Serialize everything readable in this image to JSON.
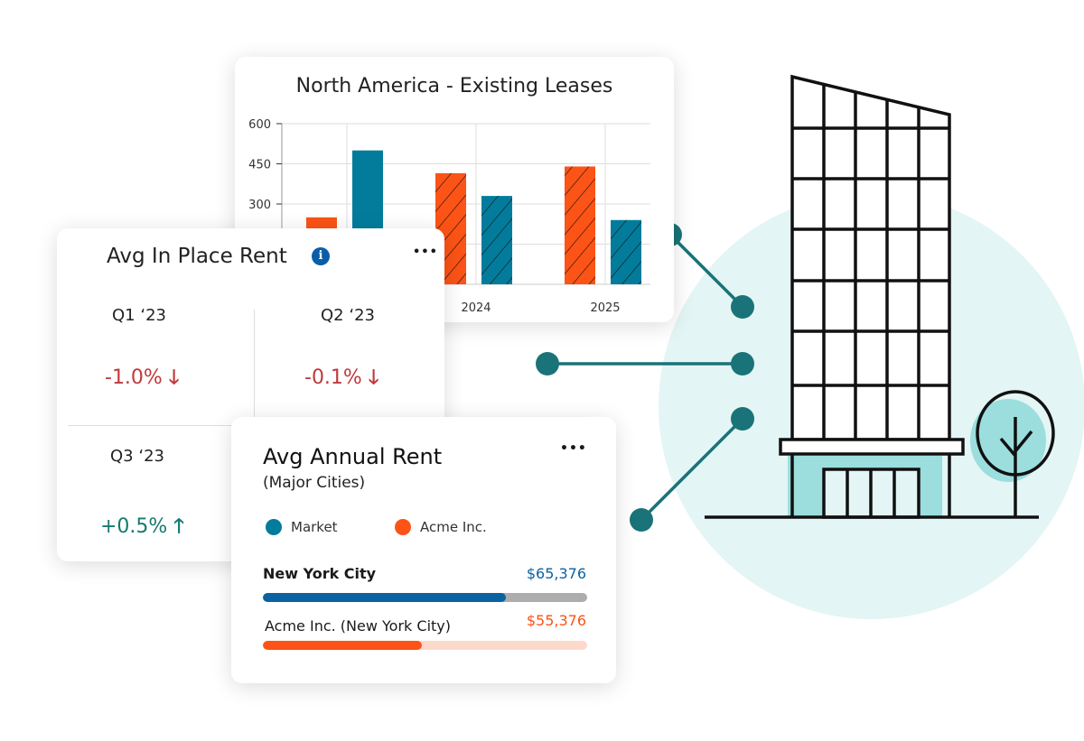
{
  "colors": {
    "market": "#037c9c",
    "acme": "#fc5316",
    "teal_dot": "#1a7378",
    "circle_bg": "#e3f5f4",
    "down": "#c0393b",
    "up": "#157a6e",
    "nyc_bar": "#0a63a0"
  },
  "chart_data": {
    "type": "bar",
    "title": "North America - Existing Leases",
    "categories": [
      "",
      "2024",
      "2025"
    ],
    "series": [
      {
        "values": [
          250,
          415,
          440
        ],
        "color": "#fc5316"
      },
      {
        "values": [
          500,
          330,
          240
        ],
        "color": "#037c9c"
      }
    ],
    "hatched_categories": [
      "2024",
      "2025"
    ],
    "yticks": [
      300,
      450,
      600
    ],
    "ylim": [
      0,
      600
    ],
    "grid": true
  },
  "in_place_rent": {
    "title": "Avg In Place Rent",
    "info_icon": "i",
    "menu_icon": "•••",
    "quarters": [
      {
        "label": "Q1 ‘23",
        "value": "-1.0%",
        "trend": "down"
      },
      {
        "label": "Q2 ‘23",
        "value": "-0.1%",
        "trend": "down"
      },
      {
        "label": "Q3 ‘23",
        "value": "+0.5%",
        "trend": "up"
      }
    ]
  },
  "annual_rent": {
    "title": "Avg Annual Rent",
    "subtitle": "(Major Cities)",
    "menu_icon": "•••",
    "legend": [
      {
        "label": "Market",
        "color": "#037c9c"
      },
      {
        "label": "Acme Inc.",
        "color": "#fc5316"
      }
    ],
    "rows": [
      {
        "label": "New York City",
        "value": "$65,376",
        "progress": 0.75
      },
      {
        "label": "Acme Inc. (New York City)",
        "value": "$55,376",
        "progress": 0.49
      }
    ]
  }
}
